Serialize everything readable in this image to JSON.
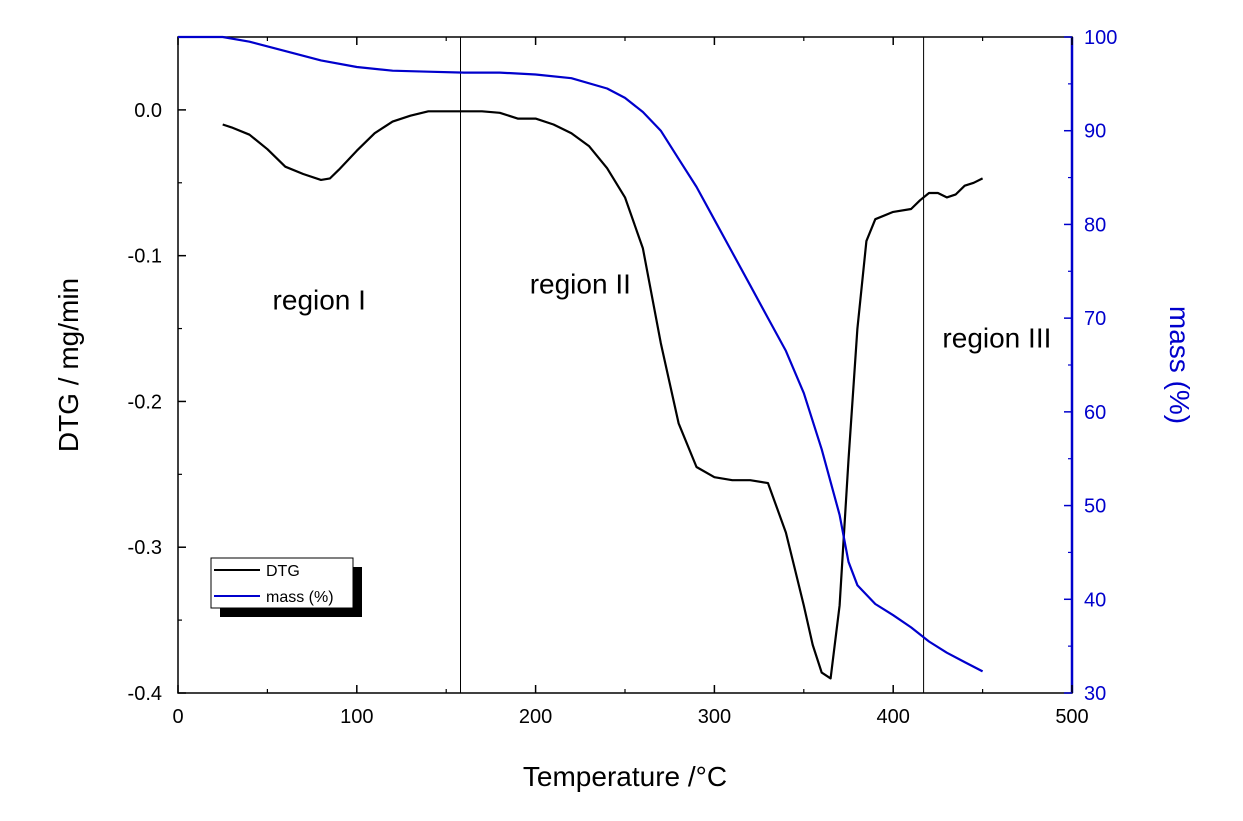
{
  "chart_data": {
    "type": "line",
    "title": "",
    "xlabel": "Temperature /°C",
    "ylabel": "DTG / mg/min",
    "y2label": "mass (%)",
    "xlim": [
      0,
      500
    ],
    "ylim": [
      -0.4,
      0.05
    ],
    "y2lim": [
      30,
      100
    ],
    "x_ticks": [
      0,
      100,
      200,
      300,
      400,
      500
    ],
    "x_tick_labels": [
      "0",
      "100",
      "200",
      "300",
      "400",
      "500"
    ],
    "y_ticks": [
      0.0,
      -0.1,
      -0.2,
      -0.3,
      -0.4
    ],
    "y_tick_labels": [
      "0.0",
      "-0.1",
      "-0.2",
      "-0.3",
      "-0.4"
    ],
    "y2_ticks": [
      30,
      40,
      50,
      60,
      70,
      80,
      90,
      100
    ],
    "y2_tick_labels": [
      "30",
      "40",
      "50",
      "60",
      "70",
      "80",
      "90",
      "100"
    ],
    "grid": false,
    "legend_position": "bottom-left",
    "colors": {
      "dtg": "#000000",
      "mass": "#0000cc",
      "axis_right": "#0000cc"
    },
    "series": [
      {
        "name": "DTG",
        "axis": "left",
        "x": [
          25,
          30,
          40,
          50,
          60,
          70,
          80,
          85,
          90,
          100,
          110,
          120,
          130,
          140,
          150,
          160,
          170,
          180,
          190,
          200,
          210,
          220,
          230,
          240,
          250,
          260,
          270,
          280,
          290,
          300,
          310,
          320,
          330,
          340,
          345,
          350,
          355,
          360,
          365,
          370,
          375,
          380,
          385,
          390,
          400,
          410,
          415,
          420,
          425,
          430,
          435,
          440,
          445,
          450
        ],
        "values": [
          -0.01,
          -0.012,
          -0.017,
          -0.027,
          -0.039,
          -0.044,
          -0.048,
          -0.047,
          -0.041,
          -0.028,
          -0.016,
          -0.008,
          -0.004,
          -0.001,
          -0.001,
          -0.001,
          -0.001,
          -0.002,
          -0.006,
          -0.006,
          -0.01,
          -0.016,
          -0.025,
          -0.04,
          -0.06,
          -0.095,
          -0.16,
          -0.215,
          -0.245,
          -0.252,
          -0.254,
          -0.254,
          -0.256,
          -0.29,
          -0.315,
          -0.34,
          -0.367,
          -0.386,
          -0.39,
          -0.34,
          -0.24,
          -0.15,
          -0.09,
          -0.075,
          -0.07,
          -0.068,
          -0.062,
          -0.057,
          -0.057,
          -0.06,
          -0.058,
          -0.052,
          -0.05,
          -0.047
        ]
      },
      {
        "name": "mass (%)",
        "axis": "right",
        "x": [
          0,
          25,
          40,
          60,
          80,
          100,
          120,
          140,
          160,
          180,
          200,
          220,
          240,
          250,
          260,
          270,
          280,
          290,
          300,
          310,
          320,
          330,
          340,
          350,
          360,
          370,
          375,
          380,
          390,
          400,
          410,
          420,
          430,
          440,
          450
        ],
        "values": [
          100,
          100,
          99.5,
          98.5,
          97.5,
          96.8,
          96.4,
          96.3,
          96.2,
          96.2,
          96,
          95.6,
          94.5,
          93.5,
          92,
          90,
          87,
          84,
          80.5,
          77,
          73.5,
          70,
          66.5,
          62,
          56,
          49,
          44,
          41.5,
          39.5,
          38.3,
          37,
          35.5,
          34.3,
          33.3,
          32.3
        ]
      }
    ],
    "vertical_lines_x": [
      158,
      417
    ],
    "annotations": [
      {
        "text": "region I",
        "x": 79,
        "y": -0.137
      },
      {
        "text": "region II",
        "x": 225,
        "y": -0.126
      },
      {
        "text": "region III",
        "x": 458,
        "y": -0.163
      }
    ],
    "legend": [
      "DTG",
      "mass (%)"
    ]
  }
}
